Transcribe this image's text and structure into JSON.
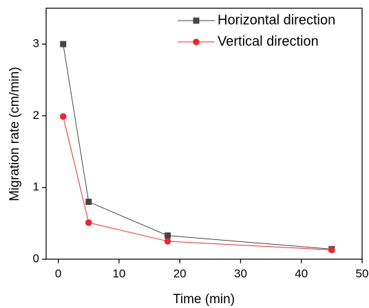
{
  "chart_data": {
    "type": "line",
    "x_label": "Time (min)",
    "y_label": "Migration rate (cm/min)",
    "xlim": [
      -2,
      50
    ],
    "xticks": [
      0,
      10,
      20,
      30,
      40,
      50
    ],
    "ylim": [
      0,
      3.5
    ],
    "yticks": [
      0,
      1,
      2,
      3
    ],
    "grid": false,
    "legend": "upper right",
    "series": [
      {
        "name": "Horizontal direction",
        "color": "#444444",
        "marker": "square",
        "x": [
          0.8,
          5,
          18,
          45
        ],
        "values": [
          3.0,
          0.8,
          0.33,
          0.14
        ]
      },
      {
        "name": "Vertical direction",
        "color": "#e8282b",
        "marker": "circle",
        "x": [
          0.8,
          5,
          18,
          45
        ],
        "values": [
          1.99,
          0.51,
          0.25,
          0.13
        ]
      }
    ]
  }
}
